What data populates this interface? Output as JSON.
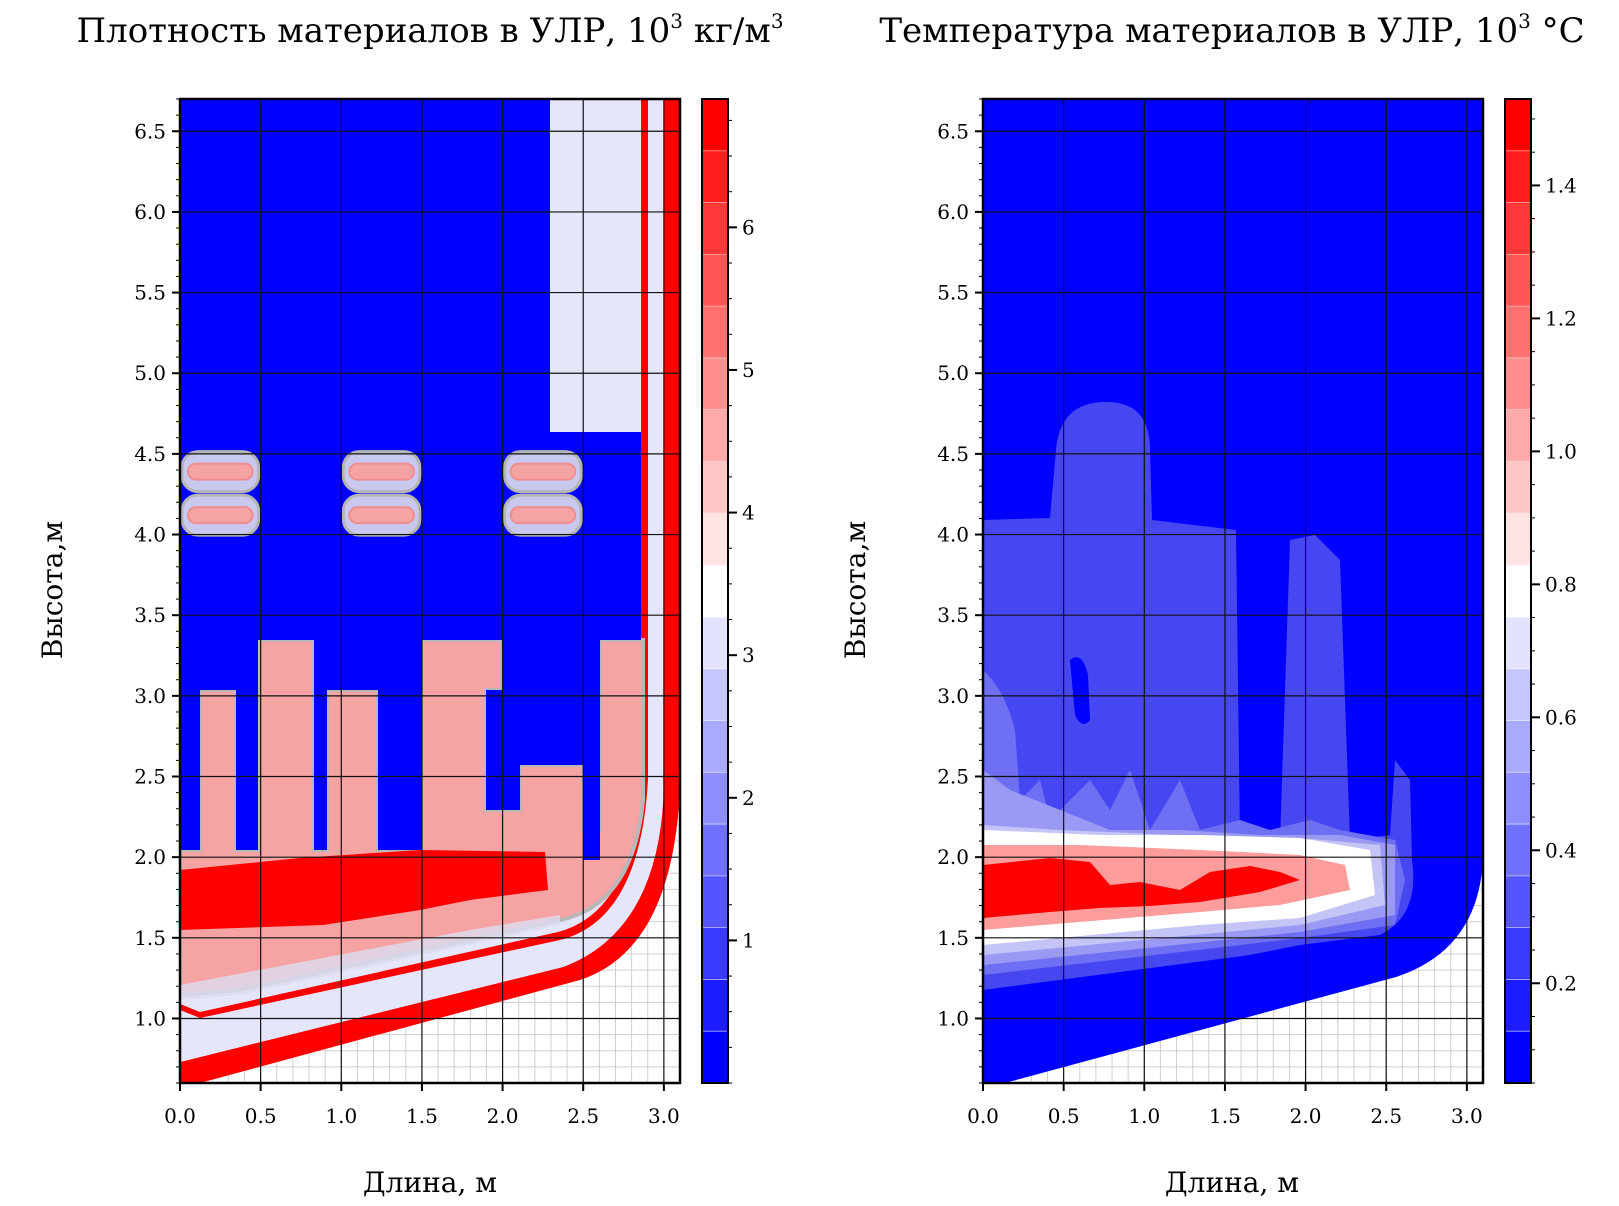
{
  "chart_data": [
    {
      "type": "heatmap",
      "title": "Плотность материалов в УЛР, 10",
      "title_sup": "3",
      "title_unit": "кг/м",
      "title_unit_sup": "3",
      "xlabel": "Длина, м",
      "ylabel": "Высота,м",
      "xlim": [
        0.0,
        3.1
      ],
      "ylim": [
        0.6,
        6.7
      ],
      "xticks": [
        "0.0",
        "0.5",
        "1.0",
        "1.5",
        "2.0",
        "2.5",
        "3.0"
      ],
      "yticks": [
        "1.0",
        "1.5",
        "2.0",
        "2.5",
        "3.0",
        "3.5",
        "4.0",
        "4.5",
        "5.0",
        "5.5",
        "6.0",
        "6.5"
      ],
      "colorbar": {
        "min": 0,
        "max": 6.9,
        "ticks": [
          "1",
          "2",
          "3",
          "4",
          "5",
          "6"
        ]
      },
      "colors": {
        "low": "#0000ff",
        "mid": "#ffffff",
        "high": "#ff0000",
        "pink": "#f5a3a3",
        "lavender": "#e6e6fb"
      },
      "grid": true
    },
    {
      "type": "heatmap",
      "title": "Температура материалов в УЛР, 10",
      "title_sup": "3",
      "title_unit": "°C",
      "xlabel": "Длина, м",
      "ylabel": "Высота,м",
      "xlim": [
        0.0,
        3.1
      ],
      "ylim": [
        0.6,
        6.7
      ],
      "xticks": [
        "0.0",
        "0.5",
        "1.0",
        "1.5",
        "2.0",
        "2.5",
        "3.0"
      ],
      "yticks": [
        "1.0",
        "1.5",
        "2.0",
        "2.5",
        "3.0",
        "3.5",
        "4.0",
        "4.5",
        "5.0",
        "5.5",
        "6.0",
        "6.5"
      ],
      "colorbar": {
        "min": 0.05,
        "max": 1.53,
        "ticks": [
          "0.2",
          "0.4",
          "0.6",
          "0.8",
          "1.0",
          "1.2",
          "1.4"
        ]
      },
      "colors": {
        "low": "#0000ff",
        "mid": "#ffffff",
        "high": "#ff0000"
      },
      "grid": true
    }
  ]
}
